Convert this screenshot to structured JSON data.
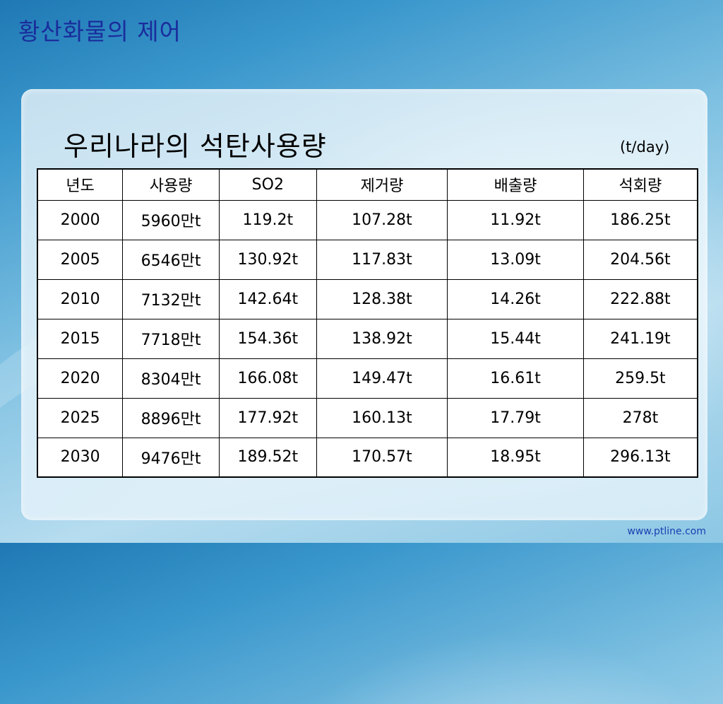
{
  "slide_title": "황산화물의 제어",
  "heading": "우리나라의 석탄사용량",
  "unit": "(t/day)",
  "table": {
    "headers": [
      "년도",
      "사용량",
      "SO2",
      "제거량",
      "배출량",
      "석회량"
    ],
    "rows": [
      [
        "2000",
        "5960만t",
        "119.2t",
        "107.28t",
        "11.92t",
        "186.25t"
      ],
      [
        "2005",
        "6546만t",
        "130.92t",
        "117.83t",
        "13.09t",
        "204.56t"
      ],
      [
        "2010",
        "7132만t",
        "142.64t",
        "128.38t",
        "14.26t",
        "222.88t"
      ],
      [
        "2015",
        "7718만t",
        "154.36t",
        "138.92t",
        "15.44t",
        "241.19t"
      ],
      [
        "2020",
        "8304만t",
        "166.08t",
        "149.47t",
        "16.61t",
        "259.5t"
      ],
      [
        "2025",
        "8896만t",
        "177.92t",
        "160.13t",
        "17.79t",
        "278t"
      ],
      [
        "2030",
        "9476만t",
        "189.52t",
        "170.57t",
        "18.95t",
        "296.13t"
      ]
    ]
  },
  "footer": "www.ptline.com"
}
